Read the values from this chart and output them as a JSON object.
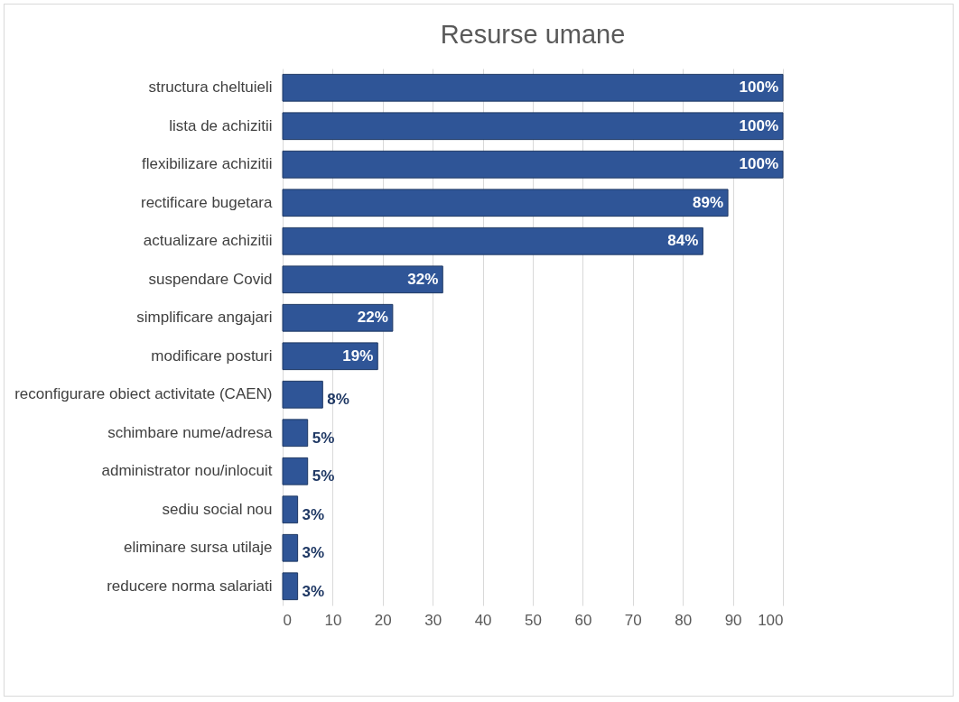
{
  "chart_data": {
    "type": "bar",
    "orientation": "horizontal",
    "title": "Resurse umane",
    "categories": [
      "structura cheltuieli",
      "lista de achizitii",
      "flexibilizare achizitii",
      "rectificare bugetara",
      "actualizare achizitii",
      "suspendare Covid",
      "simplificare angajari",
      "modificare posturi",
      "reconfigurare obiect activitate (CAEN)",
      "schimbare nume/adresa",
      "administrator nou/inlocuit",
      "sediu social nou",
      "eliminare sursa utilaje",
      "reducere norma salariati"
    ],
    "values": [
      100,
      100,
      100,
      89,
      84,
      32,
      22,
      19,
      8,
      5,
      5,
      3,
      3,
      3
    ],
    "value_labels": [
      "100%",
      "100%",
      "100%",
      "89%",
      "84%",
      "32%",
      "22%",
      "19%",
      "8%",
      "5%",
      "5%",
      "3%",
      "3%",
      "3%"
    ],
    "color": "#2f5597",
    "xlim": [
      0,
      100
    ],
    "xticks": [
      0,
      10,
      20,
      30,
      40,
      50,
      60,
      70,
      80,
      90,
      100
    ],
    "grid": "x"
  }
}
